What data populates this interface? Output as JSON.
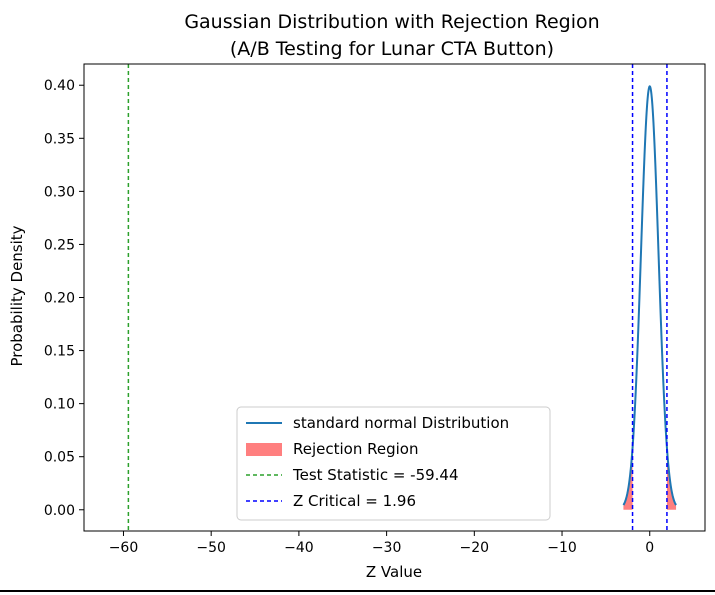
{
  "chart_data": {
    "type": "line",
    "title": "Gaussian Distribution with Rejection Region",
    "subtitle": "(A/B Testing for Lunar CTA Button)",
    "xlabel": "Z Value",
    "ylabel": "Probability Density",
    "xlim": [
      -64.5,
      6.3
    ],
    "ylim": [
      -0.02,
      0.42
    ],
    "xticks": [
      -60,
      -50,
      -40,
      -30,
      -20,
      -10,
      0
    ],
    "xtick_labels": [
      "−60",
      "−50",
      "−40",
      "−30",
      "−20",
      "−10",
      "0"
    ],
    "yticks": [
      0.0,
      0.05,
      0.1,
      0.15,
      0.2,
      0.25,
      0.3,
      0.35,
      0.4
    ],
    "ytick_labels": [
      "0.00",
      "0.05",
      "0.10",
      "0.15",
      "0.20",
      "0.25",
      "0.30",
      "0.35",
      "0.40"
    ],
    "grid": false,
    "legend_position": "lower center",
    "distribution": {
      "name": "standard normal Distribution",
      "mean": 0,
      "std": 1,
      "x_range": [
        -3,
        3
      ],
      "color": "#1f77b4"
    },
    "rejection_region": {
      "name": "Rejection Region",
      "left": [
        -3,
        -1.96
      ],
      "right": [
        1.96,
        3
      ],
      "color": "#ff0000",
      "alpha": 0.5
    },
    "test_statistic": {
      "name": "Test Statistic = -59.44",
      "value": -59.44,
      "color": "#2ca02c"
    },
    "z_critical": {
      "name": "Z Critical = 1.96",
      "value": 1.96,
      "color": "#0000ff"
    }
  }
}
